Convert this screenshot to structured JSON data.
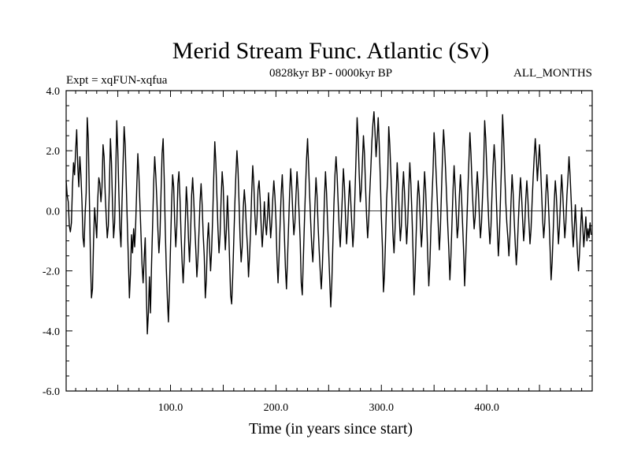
{
  "chart_data": {
    "type": "line",
    "title": "Merid Stream Func. Atlantic (Sv)",
    "left_subtitle": "Expt = xqFUN-xqfua",
    "center_subtitle": "0828kyr BP - 0000kyr BP",
    "right_subtitle": "ALL_MONTHS",
    "xlabel": "Time (in years since start)",
    "ylabel": "",
    "xlim": [
      1,
      500
    ],
    "ylim": [
      -6.0,
      4.0
    ],
    "x_ticks": [
      100,
      200,
      300,
      400
    ],
    "x_tick_labels": [
      "100.0",
      "200.0",
      "300.0",
      "400.0"
    ],
    "y_ticks": [
      4.0,
      2.0,
      0.0,
      -2.0,
      -4.0,
      -6.0
    ],
    "y_tick_labels": [
      "4.0",
      "2.0",
      "0.0",
      "-2.0",
      "-4.0",
      "-6.0"
    ],
    "reference_line": 0.0,
    "series": [
      {
        "name": "Merid Stream Func. Atlantic",
        "x_start": 1,
        "x_step": 1,
        "values": [
          1.0,
          0.5,
          0.3,
          -0.5,
          -0.7,
          -0.4,
          0.8,
          1.6,
          1.2,
          2.0,
          2.7,
          1.5,
          0.8,
          1.8,
          1.2,
          0.3,
          -0.9,
          -1.2,
          -0.1,
          0.6,
          3.1,
          2.4,
          0.5,
          -1.5,
          -2.9,
          -2.6,
          -1.0,
          0.1,
          -0.4,
          -0.9,
          0.4,
          1.1,
          0.9,
          0.3,
          0.8,
          2.2,
          1.8,
          0.6,
          -0.2,
          -0.9,
          -0.5,
          0.8,
          2.4,
          1.6,
          0.2,
          -0.9,
          -0.4,
          1.2,
          3.0,
          2.0,
          0.6,
          -0.6,
          -1.2,
          0.3,
          1.6,
          2.8,
          2.2,
          0.9,
          -0.4,
          -1.6,
          -2.9,
          -2.1,
          -0.8,
          -1.4,
          -0.6,
          -1.2,
          -0.4,
          0.8,
          1.9,
          1.2,
          0.2,
          -0.8,
          -1.8,
          -2.4,
          -1.6,
          -0.9,
          -2.6,
          -4.1,
          -3.4,
          -2.2,
          -3.4,
          -1.8,
          -0.5,
          0.9,
          1.8,
          1.2,
          0.4,
          -0.6,
          -1.4,
          -0.8,
          0.6,
          1.9,
          2.4,
          1.1,
          -0.6,
          -1.9,
          -2.9,
          -3.7,
          -2.6,
          -1.2,
          0.2,
          1.2,
          0.8,
          -0.4,
          -1.2,
          -0.5,
          0.9,
          1.3,
          0.4,
          -0.8,
          -1.7,
          -2.4,
          -1.6,
          -0.4,
          0.8,
          0.2,
          -0.9,
          -1.7,
          -0.8,
          0.5,
          1.1,
          0.4,
          -0.5,
          -1.3,
          -2.2,
          -1.6,
          -0.7,
          0.3,
          0.9,
          0.2,
          -0.8,
          -1.5,
          -2.9,
          -2.3,
          -1.0,
          -0.4,
          -1.2,
          -2.0,
          -1.3,
          -0.2,
          1.1,
          2.3,
          1.6,
          0.5,
          -0.6,
          -1.4,
          -0.8,
          0.4,
          1.3,
          0.8,
          -0.4,
          -1.3,
          -0.6,
          0.5,
          -0.4,
          -1.6,
          -2.8,
          -3.1,
          -2.2,
          -1.0,
          0.2,
          1.2,
          2.0,
          1.4,
          0.3,
          -0.9,
          -1.7,
          -1.2,
          0.1,
          0.7,
          0.2,
          -0.6,
          -1.2,
          -2.2,
          -1.5,
          -0.6,
          0.6,
          1.5,
          0.9,
          -0.1,
          -0.8,
          -0.3,
          0.7,
          1.0,
          0.4,
          -0.5,
          -1.2,
          -0.6,
          0.3,
          -0.4,
          -0.8,
          -0.2,
          0.6,
          -0.2,
          -0.9,
          -0.4,
          0.4,
          1.0,
          0.5,
          -0.3,
          -1.6,
          -2.4,
          -1.5,
          -0.4,
          0.6,
          1.2,
          0.3,
          -0.8,
          -1.9,
          -2.6,
          -1.6,
          -0.5,
          0.6,
          1.4,
          0.8,
          -0.1,
          -0.8,
          -0.4,
          0.5,
          1.3,
          0.7,
          -0.1,
          -1.0,
          -2.4,
          -2.8,
          -1.6,
          -0.4,
          0.7,
          1.7,
          2.4,
          1.5,
          0.5,
          -0.4,
          -1.2,
          -1.7,
          -0.9,
          0.2,
          1.1,
          0.5,
          -0.5,
          -1.3,
          -2.0,
          -2.6,
          -1.9,
          -0.8,
          0.4,
          1.3,
          0.6,
          -0.4,
          -1.3,
          -2.3,
          -3.2,
          -2.4,
          -1.1,
          0.2,
          1.2,
          1.8,
          1.2,
          0.3,
          -0.6,
          -1.2,
          -0.4,
          0.5,
          1.4,
          0.8,
          -0.2,
          -1.1,
          -0.5,
          0.4,
          1.0,
          0.3,
          -0.5,
          -1.2,
          -0.6,
          0.6,
          1.8,
          3.1,
          2.4,
          1.2,
          0.3,
          0.7,
          1.6,
          2.5,
          1.9,
          0.8,
          -0.2,
          -0.9,
          -0.3,
          0.6,
          1.4,
          2.3,
          2.9,
          3.3,
          2.6,
          1.8,
          2.4,
          3.1,
          2.2,
          1.1,
          -0.2,
          -1.2,
          -2.7,
          -2.1,
          -0.9,
          0.4,
          1.1,
          2.8,
          2.2,
          1.3,
          0.4,
          -0.8,
          -1.4,
          -0.6,
          0.5,
          1.6,
          0.9,
          -0.2,
          -1.0,
          -0.5,
          0.6,
          1.3,
          0.6,
          -0.3,
          -1.1,
          -0.4,
          0.7,
          1.6,
          0.9,
          -0.1,
          -1.3,
          -2.8,
          -2.0,
          -0.8,
          0.3,
          1.0,
          0.5,
          -0.4,
          -1.2,
          -0.6,
          0.4,
          1.3,
          0.7,
          -0.3,
          -1.5,
          -2.5,
          -1.8,
          -0.6,
          0.4,
          1.3,
          2.6,
          2.0,
          1.2,
          0.4,
          -0.5,
          -1.3,
          -0.6,
          0.6,
          1.8,
          2.7,
          2.1,
          1.3,
          0.4,
          -0.5,
          -1.3,
          -2.3,
          -1.5,
          -0.4,
          0.7,
          1.5,
          0.8,
          -0.1,
          -0.9,
          -0.5,
          0.5,
          1.2,
          0.5,
          -0.4,
          -1.3,
          -2.5,
          -1.6,
          -0.5,
          0.6,
          1.6,
          2.6,
          1.9,
          0.9,
          0.1,
          -0.6,
          -0.2,
          0.6,
          1.3,
          0.7,
          -0.2,
          -0.9,
          -0.4,
          0.5,
          1.4,
          3.0,
          2.4,
          1.4,
          0.4,
          -0.5,
          -1.1,
          -0.5,
          0.6,
          1.5,
          2.2,
          1.6,
          0.5,
          -0.6,
          -1.5,
          -0.8,
          0.4,
          1.6,
          3.2,
          2.4,
          1.3,
          0.3,
          -0.4,
          -0.9,
          -1.5,
          -0.8,
          0.3,
          1.2,
          0.6,
          -0.3,
          -1.1,
          -1.8,
          -1.2,
          -0.3,
          0.5,
          1.1,
          0.5,
          -0.3,
          -1.0,
          -0.5,
          0.4,
          1.0,
          0.4,
          -0.4,
          -1.1,
          -0.6,
          0.3,
          1.1,
          1.8,
          2.4,
          1.8,
          1.0,
          1.6,
          2.2,
          1.5,
          0.6,
          -0.3,
          -0.9,
          -0.4,
          0.5,
          1.2,
          0.6,
          -0.2,
          -1.2,
          -2.3,
          -1.7,
          -0.7,
          0.3,
          1.0,
          0.5,
          -0.3,
          -1.1,
          -0.5,
          0.4,
          1.2,
          0.6,
          -0.2,
          -0.9,
          -0.4,
          0.5,
          1.1,
          1.8,
          1.2,
          0.4,
          -0.5,
          -1.2,
          -0.6,
          0.2,
          -0.6,
          -1.4,
          -2.0,
          -1.4,
          -0.6,
          0.1,
          -0.5,
          -1.2,
          -0.7,
          -0.2,
          -1.0,
          -0.6,
          -0.9,
          -0.4,
          -0.8
        ]
      }
    ]
  }
}
